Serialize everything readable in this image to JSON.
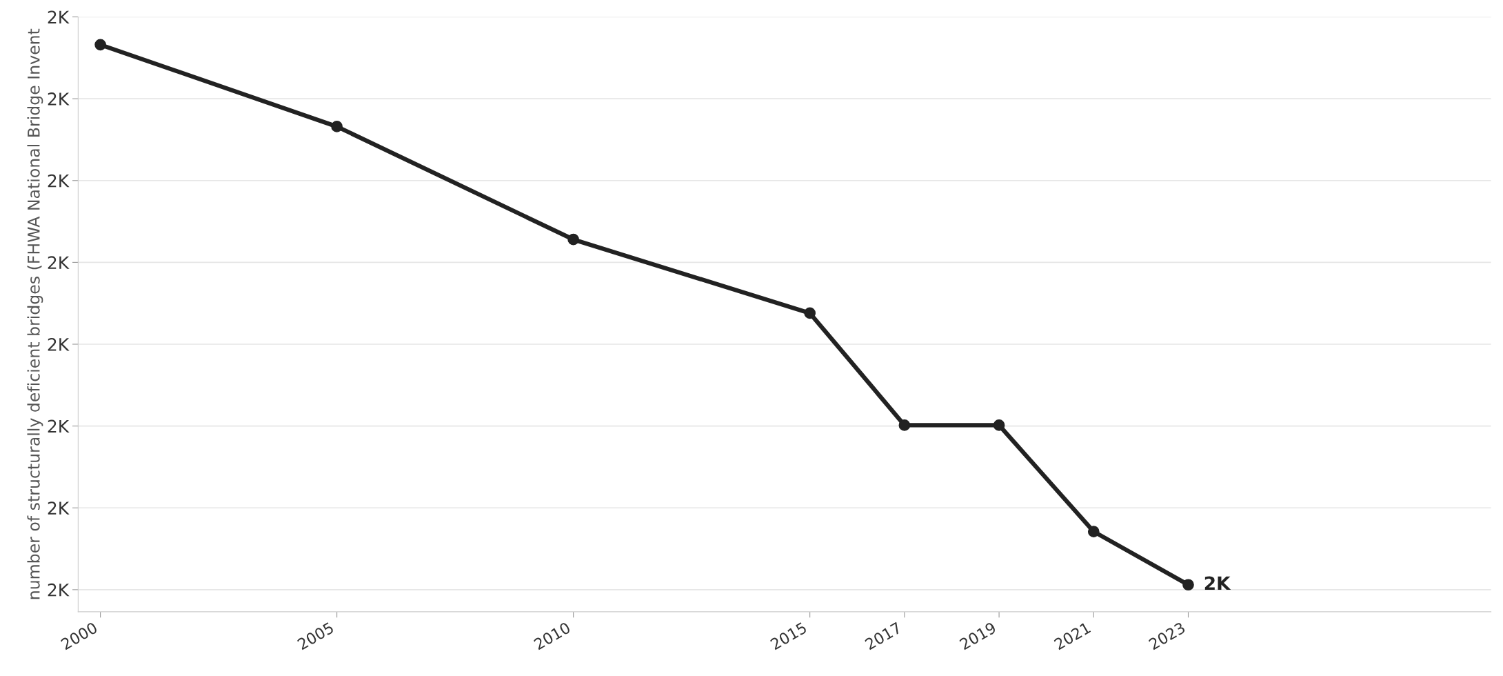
{
  "chart_data": {
    "type": "line",
    "ylabel": "number of structurally deficient bridges (FHWA National Bridge Invent",
    "x": [
      2000,
      2005,
      2010,
      2015,
      2017,
      2019,
      2021,
      2023
    ],
    "series": [
      {
        "color": "#222222",
        "values": [
          2266,
          2166,
          2028,
          1938,
          1801,
          1801,
          1671,
          1606
        ],
        "value_labels": [
          null,
          null,
          null,
          null,
          null,
          null,
          null,
          "2K"
        ]
      }
    ],
    "xlim": [
      1999.53,
      2029.4
    ],
    "xticks": [
      2000,
      2005,
      2010,
      2015,
      2017,
      2019,
      2021,
      2023
    ],
    "ylim": [
      1573,
      2300
    ],
    "yticks": [
      {
        "value": 1600,
        "label": "2K"
      },
      {
        "value": 1700,
        "label": "2K"
      },
      {
        "value": 1800,
        "label": "2K"
      },
      {
        "value": 1900,
        "label": "2K"
      },
      {
        "value": 2000,
        "label": "2K"
      },
      {
        "value": 2100,
        "label": "2K"
      },
      {
        "value": 2200,
        "label": "2K"
      },
      {
        "value": 2300,
        "label": "2K"
      }
    ],
    "grid": "y",
    "marker": "circle",
    "line_style": "solid",
    "legend": false
  }
}
